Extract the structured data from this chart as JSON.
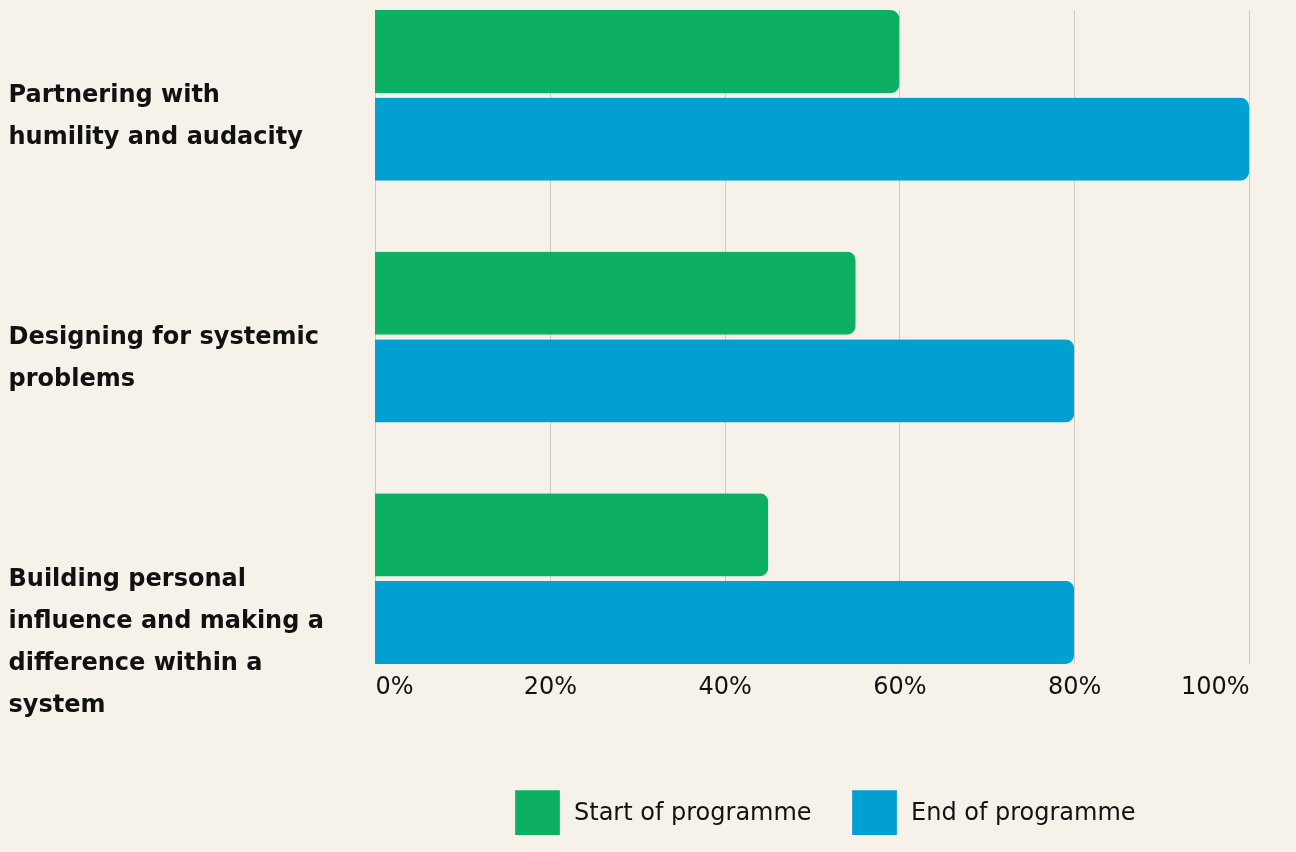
{
  "chart_data": {
    "type": "bar",
    "orientation": "horizontal",
    "categories": [
      "Partnering with humility and audacity",
      "Designing for systemic problems",
      "Building personal influence and making a difference within a system"
    ],
    "series": [
      {
        "name": "Start of programme",
        "color": "#0db063",
        "values": [
          60,
          55,
          45
        ]
      },
      {
        "name": "End of programme",
        "color": "#00a1d0",
        "values": [
          100,
          80,
          80
        ]
      }
    ],
    "xlim": [
      0,
      100
    ],
    "xticks": [
      {
        "value": 0,
        "label": "0%"
      },
      {
        "value": 20,
        "label": "20%"
      },
      {
        "value": 40,
        "label": "40%"
      },
      {
        "value": 60,
        "label": "60%"
      },
      {
        "value": 80,
        "label": "80%"
      },
      {
        "value": 100,
        "label": "100%"
      }
    ],
    "grid": "x",
    "legend": "bottom right"
  }
}
